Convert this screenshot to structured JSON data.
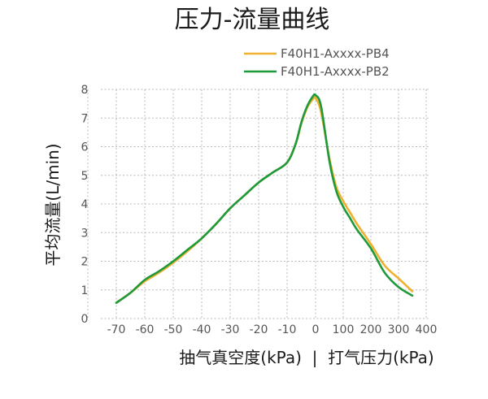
{
  "chart_data": {
    "type": "line",
    "title": "压力-流量曲线",
    "xlabel": "抽气真空度(kPa)  |  打气压力(kPa)",
    "ylabel": "平均流量(L/min)",
    "ylim": [
      0,
      8
    ],
    "x_ticks": [
      "-70",
      "-60",
      "-50",
      "-40",
      "-30",
      "-20",
      "-10",
      "0",
      "100",
      "200",
      "300",
      "400"
    ],
    "y_ticks": [
      "0",
      "1",
      "2",
      "3",
      "4",
      "5",
      "6",
      "7",
      "8"
    ],
    "grid": true,
    "legend_position": "top-right",
    "series": [
      {
        "name": "F40H1-Axxxx-PB4",
        "color": "#F0B030",
        "x": [
          -70,
          -65,
          -60,
          -55,
          -50,
          -45,
          -40,
          -35,
          -30,
          -25,
          -20,
          -15,
          -10,
          -7,
          -5,
          -3,
          -1,
          0,
          20,
          50,
          75,
          100,
          125,
          150,
          200,
          250,
          300,
          350
        ],
        "y": [
          0.55,
          0.9,
          1.3,
          1.6,
          1.95,
          2.35,
          2.8,
          3.3,
          3.85,
          4.3,
          4.75,
          5.1,
          5.45,
          6.1,
          6.8,
          7.35,
          7.65,
          7.7,
          7.2,
          5.6,
          4.6,
          4.1,
          3.7,
          3.3,
          2.6,
          1.85,
          1.4,
          0.95
        ]
      },
      {
        "name": "F40H1-Axxxx-PB2",
        "color": "#1E9A3A",
        "x": [
          -70,
          -65,
          -60,
          -55,
          -50,
          -45,
          -40,
          -35,
          -30,
          -25,
          -20,
          -15,
          -10,
          -7,
          -5,
          -3,
          -1,
          0,
          20,
          50,
          75,
          100,
          125,
          150,
          200,
          250,
          300,
          350
        ],
        "y": [
          0.55,
          0.9,
          1.35,
          1.65,
          2.0,
          2.4,
          2.8,
          3.3,
          3.85,
          4.3,
          4.75,
          5.1,
          5.45,
          6.1,
          6.85,
          7.4,
          7.75,
          7.8,
          7.4,
          5.5,
          4.45,
          3.9,
          3.5,
          3.1,
          2.45,
          1.6,
          1.1,
          0.8
        ]
      }
    ]
  }
}
